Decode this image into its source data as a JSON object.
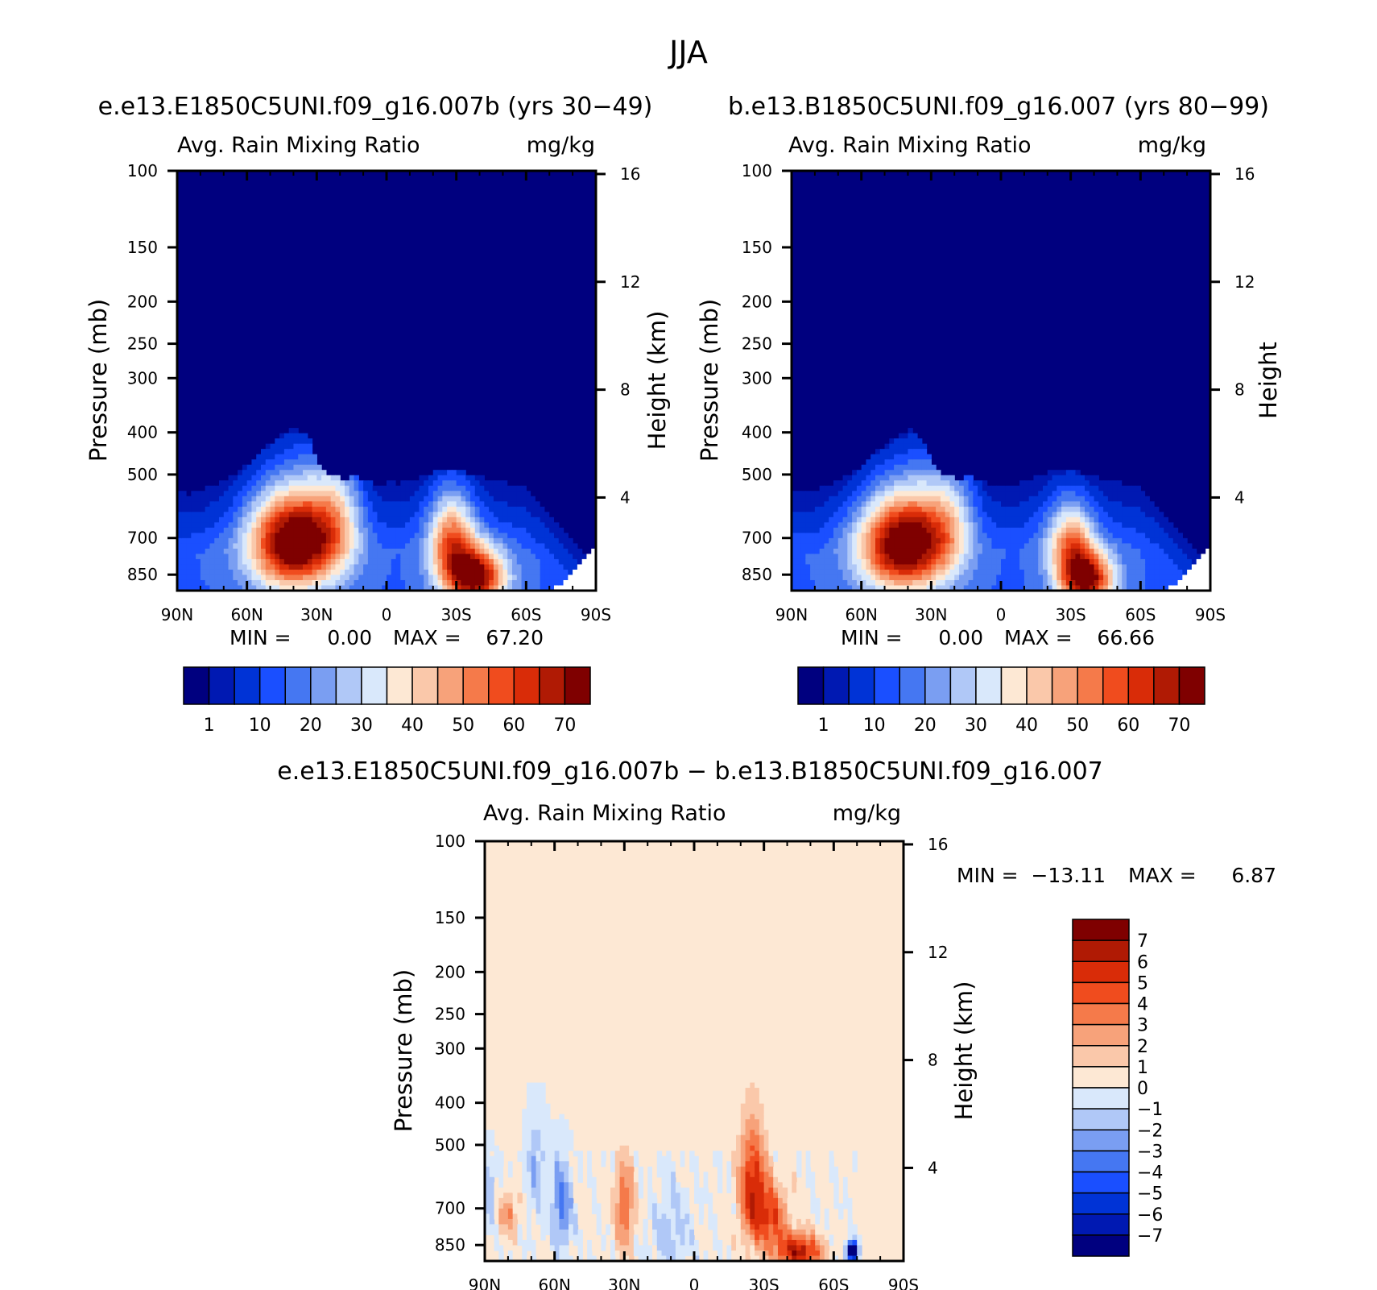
{
  "figure": {
    "title": "JJA"
  },
  "colors": {
    "frame": "#000000",
    "abs_palette": [
      "#00007f",
      "#0019b2",
      "#0033d6",
      "#1a4fff",
      "#4577f2",
      "#7a9ef2",
      "#b0c8f7",
      "#d9e8fb",
      "#fde8d4",
      "#fac8aa",
      "#f7a27a",
      "#f57a4a",
      "#f04c1e",
      "#d92c08",
      "#b01a04",
      "#7f0000"
    ],
    "diff_palette": [
      "#00007f",
      "#0019b2",
      "#0033d6",
      "#1a4fff",
      "#4577f2",
      "#7a9ef2",
      "#b0c8f7",
      "#d9e8fb",
      "#fde8d4",
      "#fac8aa",
      "#f7a27a",
      "#f57a4a",
      "#f04c1e",
      "#d92c08",
      "#b01a04",
      "#7f0000"
    ]
  },
  "chart_data": [
    {
      "type": "heatmap",
      "case": "e.e13.E1850C5UNI.f09_g16.007b (yrs 30−49)",
      "left_string": "Avg. Rain Mixing Ratio",
      "right_string": "mg/kg",
      "ylabel": "Pressure (mb)",
      "ylabel_right": "Height (km)",
      "x_ticks": [
        "90N",
        "60N",
        "30N",
        "0",
        "30S",
        "60S",
        "90S"
      ],
      "y_ticks": [
        "100",
        "150",
        "200",
        "250",
        "300",
        "400",
        "500",
        "700",
        "850"
      ],
      "y_ticks_right": [
        "16",
        "12",
        "8",
        "4"
      ],
      "min_label": "MIN =",
      "min_value": "0.00",
      "max_label": "MAX =",
      "max_value": "67.20",
      "levels_labels": [
        "1",
        "10",
        "20",
        "30",
        "40",
        "50",
        "60",
        "70"
      ],
      "xlim": [
        -90,
        90
      ],
      "ylim": [
        100,
        925
      ],
      "yscale": "log",
      "cloud_top_mb": [
        545,
        548,
        545,
        530,
        515,
        500,
        470,
        440,
        420,
        400,
        390,
        410,
        480,
        505,
        510,
        505,
        520,
        530,
        520,
        520,
        510,
        500,
        490,
        490,
        495,
        505,
        510,
        515,
        520,
        530,
        560,
        600,
        650,
        700,
        760,
        800
      ],
      "ocean_floor_mb": [
        925,
        925,
        925,
        925,
        925,
        925,
        925,
        925,
        925,
        925,
        925,
        925,
        925,
        925,
        925,
        925,
        925,
        925,
        925,
        925,
        925,
        925,
        925,
        925,
        925,
        925,
        925,
        925,
        925,
        925,
        925,
        925,
        900,
        850,
        780,
        740
      ],
      "blobs": [
        {
          "lat": 40,
          "p": 720,
          "peak": 67,
          "lat_w": 13,
          "p_w": 130
        },
        {
          "lat": 22,
          "p": 600,
          "peak": 26,
          "lat_w": 8,
          "p_w": 140
        },
        {
          "lat": -38,
          "p": 860,
          "peak": 62,
          "lat_w": 9,
          "p_w": 90
        },
        {
          "lat": -28,
          "p": 700,
          "peak": 40,
          "lat_w": 7,
          "p_w": 120
        }
      ]
    },
    {
      "type": "heatmap",
      "case": "b.e13.B1850C5UNI.f09_g16.007 (yrs 80−99)",
      "left_string": "Avg. Rain Mixing Ratio",
      "right_string": "mg/kg",
      "ylabel": "Pressure (mb)",
      "ylabel_right": "Height",
      "x_ticks": [
        "90N",
        "60N",
        "30N",
        "0",
        "30S",
        "60S",
        "90S"
      ],
      "y_ticks": [
        "100",
        "150",
        "200",
        "250",
        "300",
        "400",
        "500",
        "700",
        "850"
      ],
      "y_ticks_right": [
        "16",
        "12",
        "8",
        "4"
      ],
      "min_label": "MIN =",
      "min_value": "0.00",
      "max_label": "MAX =",
      "max_value": "66.66",
      "levels_labels": [
        "1",
        "10",
        "20",
        "30",
        "40",
        "50",
        "60",
        "70"
      ],
      "xlim": [
        -90,
        90
      ],
      "ylim": [
        100,
        925
      ],
      "yscale": "log",
      "cloud_top_mb": [
        540,
        545,
        545,
        530,
        515,
        500,
        475,
        440,
        425,
        405,
        395,
        415,
        480,
        505,
        510,
        505,
        520,
        530,
        520,
        520,
        510,
        500,
        490,
        490,
        495,
        505,
        510,
        515,
        520,
        530,
        560,
        600,
        650,
        700,
        760,
        800
      ],
      "ocean_floor_mb": [
        925,
        925,
        925,
        925,
        925,
        925,
        925,
        925,
        925,
        925,
        925,
        925,
        925,
        925,
        925,
        925,
        925,
        925,
        925,
        925,
        925,
        925,
        925,
        925,
        925,
        925,
        925,
        925,
        925,
        925,
        925,
        925,
        900,
        850,
        780,
        740
      ],
      "blobs": [
        {
          "lat": 42,
          "p": 730,
          "peak": 66,
          "lat_w": 13,
          "p_w": 130
        },
        {
          "lat": 23,
          "p": 620,
          "peak": 24,
          "lat_w": 8,
          "p_w": 140
        },
        {
          "lat": -37,
          "p": 870,
          "peak": 58,
          "lat_w": 8,
          "p_w": 85
        },
        {
          "lat": -30,
          "p": 720,
          "peak": 36,
          "lat_w": 7,
          "p_w": 110
        }
      ]
    },
    {
      "type": "heatmap",
      "title": "e.e13.E1850C5UNI.f09_g16.007b − b.e13.B1850C5UNI.f09_g16.007",
      "left_string": "Avg. Rain Mixing Ratio",
      "right_string": "mg/kg",
      "ylabel": "Pressure (mb)",
      "ylabel_right": "Height (km)",
      "x_ticks": [
        "90N",
        "60N",
        "30N",
        "0",
        "30S",
        "60S",
        "90S"
      ],
      "y_ticks": [
        "100",
        "150",
        "200",
        "250",
        "300",
        "400",
        "500",
        "700",
        "850"
      ],
      "y_ticks_right": [
        "16",
        "12",
        "8",
        "4"
      ],
      "min_label": "MIN =",
      "min_value": "−13.11",
      "max_label": "MAX =",
      "max_value": "6.87",
      "levels_labels": [
        "7",
        "6",
        "5",
        "4",
        "3",
        "2",
        "1",
        "0",
        "−1",
        "−2",
        "−3",
        "−4",
        "−5",
        "−6",
        "−7"
      ],
      "xlim": [
        -90,
        90
      ],
      "ylim": [
        100,
        925
      ],
      "yscale": "log",
      "blobs": [
        {
          "lat": -25,
          "p": 620,
          "peak": 5.5,
          "lat_w": 4,
          "p_w": 140
        },
        {
          "lat": -45,
          "p": 880,
          "peak": 6.5,
          "lat_w": 7,
          "p_w": 60
        },
        {
          "lat": -33,
          "p": 730,
          "peak": 4.5,
          "lat_w": 5,
          "p_w": 90
        },
        {
          "lat": 30,
          "p": 700,
          "peak": 4.0,
          "lat_w": 3,
          "p_w": 120
        },
        {
          "lat": 80,
          "p": 720,
          "peak": 3.0,
          "lat_w": 3,
          "p_w": 60
        },
        {
          "lat": 57,
          "p": 700,
          "peak": -3.5,
          "lat_w": 3,
          "p_w": 110
        },
        {
          "lat": 68,
          "p": 560,
          "peak": -1.8,
          "lat_w": 3,
          "p_w": 100
        },
        {
          "lat": 88,
          "p": 640,
          "peak": -2.0,
          "lat_w": 2,
          "p_w": 80
        },
        {
          "lat": 10,
          "p": 800,
          "peak": -1.5,
          "lat_w": 6,
          "p_w": 120
        },
        {
          "lat": -68,
          "p": 880,
          "peak": -12,
          "lat_w": 1.5,
          "p_w": 30
        }
      ]
    }
  ]
}
